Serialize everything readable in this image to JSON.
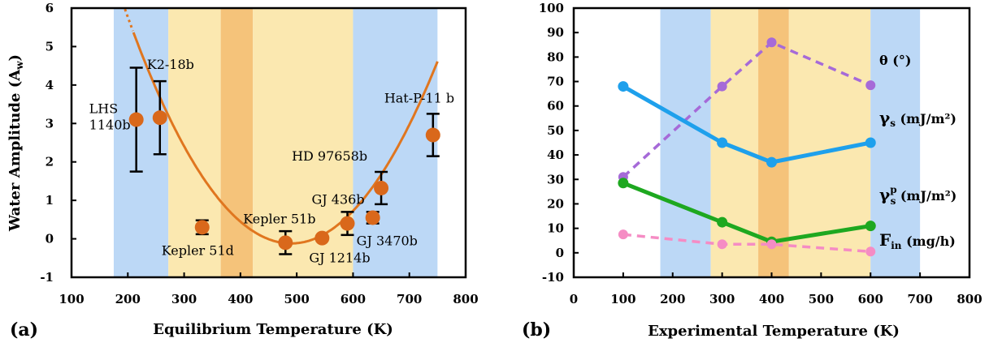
{
  "chart_data": [
    {
      "type": "scatter",
      "panel_label": "(a)",
      "xlabel": "Equilibrium Temperature (K)",
      "ylabel": "Water Amplitude (A",
      "ylabel_sub": "w",
      "ylabel_end": ")",
      "xlim": [
        100,
        800
      ],
      "ylim": [
        -1,
        6
      ],
      "xticks": [
        100,
        200,
        300,
        400,
        500,
        600,
        700,
        800
      ],
      "yticks": [
        -1,
        0,
        1,
        2,
        3,
        4,
        5,
        6
      ],
      "bands": [
        {
          "from": 175,
          "to": 272,
          "color": "#bcd8f6"
        },
        {
          "from": 272,
          "to": 365,
          "color": "#fbe8b0"
        },
        {
          "from": 365,
          "to": 422,
          "color": "#f5c37a"
        },
        {
          "from": 422,
          "to": 600,
          "color": "#fbe8b0"
        },
        {
          "from": 600,
          "to": 750,
          "color": "#bcd8f6"
        }
      ],
      "colors": {
        "points": "#d9681b",
        "fit": "#e0761f"
      },
      "fit": {
        "a": 7e-05,
        "h": 490,
        "k": -0.12,
        "dashed_to": 210,
        "x_end": 750
      },
      "points": [
        {
          "label": "LHS",
          "label2": "1140b",
          "x": 215,
          "y": 3.1,
          "err": 1.35
        },
        {
          "label": "K2-18b",
          "x": 257,
          "y": 3.15,
          "err": 0.95
        },
        {
          "label": "Kepler 51d",
          "x": 332,
          "y": 0.3,
          "err": 0.18
        },
        {
          "label": "Kepler 51b",
          "x": 480,
          "y": -0.1,
          "err": 0.3
        },
        {
          "label": "GJ 1214b",
          "x": 545,
          "y": 0.02,
          "err": 0
        },
        {
          "label": "GJ 436b",
          "x": 590,
          "y": 0.4,
          "err": 0.3
        },
        {
          "label": "GJ 3470b",
          "x": 635,
          "y": 0.55,
          "err": 0.15
        },
        {
          "label": "HD 97658b",
          "x": 650,
          "y": 1.32,
          "err": 0.42
        },
        {
          "label": "Hat-P-11 b",
          "x": 742,
          "y": 2.7,
          "err": 0.55
        }
      ]
    },
    {
      "type": "line",
      "panel_label": "(b)",
      "xlabel": "Experimental Temperature (K)",
      "xlim": [
        0,
        800
      ],
      "ylim": [
        -10,
        100
      ],
      "xticks": [
        0,
        100,
        200,
        300,
        400,
        500,
        600,
        700,
        800
      ],
      "yticks": [
        -10,
        0,
        10,
        20,
        30,
        40,
        50,
        60,
        70,
        80,
        90,
        100
      ],
      "bands": [
        {
          "from": 175,
          "to": 277,
          "color": "#bcd8f6"
        },
        {
          "from": 277,
          "to": 373,
          "color": "#fbe8b0"
        },
        {
          "from": 373,
          "to": 435,
          "color": "#f5c37a"
        },
        {
          "from": 435,
          "to": 600,
          "color": "#fbe8b0"
        },
        {
          "from": 600,
          "to": 700,
          "color": "#bcd8f6"
        }
      ],
      "x": [
        100,
        300,
        400,
        600
      ],
      "series": [
        {
          "name": "θ (°)",
          "values": [
            31,
            68,
            86,
            68.5
          ],
          "color": "#a66ad8",
          "dashed": true
        },
        {
          "name": "γs (mJ/m²)",
          "symbol": "γ",
          "sub": "s",
          "rest": " (mJ/m²)",
          "values": [
            68,
            45,
            37,
            45
          ],
          "color": "#1ea0ec",
          "dashed": false
        },
        {
          "name": "γsp (mJ/m²)",
          "symbol": "γ",
          "sub": "s",
          "sup": "p",
          "rest": " (mJ/m²)",
          "values": [
            28.5,
            12.5,
            4.5,
            11
          ],
          "color": "#1ea820",
          "dashed": false
        },
        {
          "name": "Fin (mg/h)",
          "symbol": "F",
          "sub": "in",
          "rest": " (mg/h)",
          "values": [
            7.5,
            3.5,
            3.5,
            0.5
          ],
          "color": "#f58cc4",
          "dashed": true
        }
      ]
    }
  ]
}
